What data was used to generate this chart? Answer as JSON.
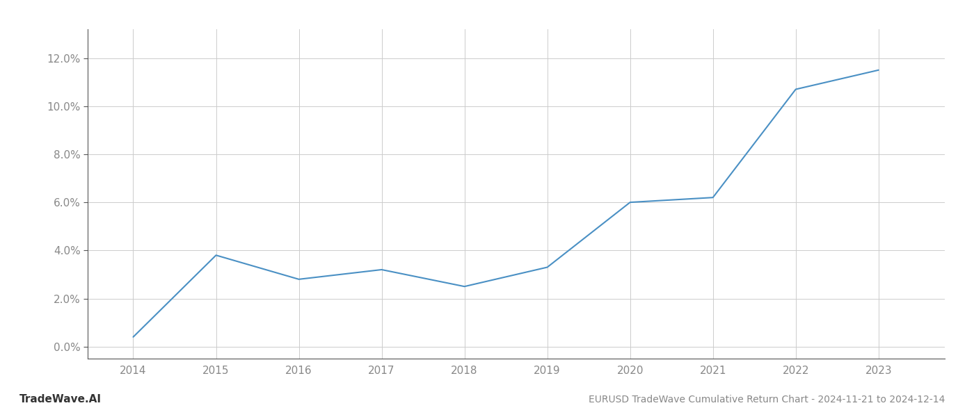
{
  "x_years": [
    2014,
    2015,
    2016,
    2017,
    2018,
    2019,
    2020,
    2021,
    2022,
    2023
  ],
  "y_values": [
    0.004,
    0.038,
    0.028,
    0.032,
    0.025,
    0.033,
    0.06,
    0.062,
    0.107,
    0.115
  ],
  "line_color": "#4a90c4",
  "background_color": "#ffffff",
  "grid_color": "#cccccc",
  "axis_color": "#555555",
  "tick_color": "#888888",
  "title": "EURUSD TradeWave Cumulative Return Chart - 2024-11-21 to 2024-12-14",
  "watermark": "TradeWave.AI",
  "ylim_min": -0.005,
  "ylim_max": 0.132,
  "ytick_values": [
    0.0,
    0.02,
    0.04,
    0.06,
    0.08,
    0.1,
    0.12
  ],
  "ytick_labels": [
    "0.0%",
    "2.0%",
    "4.0%",
    "6.0%",
    "8.0%",
    "10.0%",
    "12.0%"
  ],
  "xlim_min": 2013.45,
  "xlim_max": 2023.8,
  "figsize": [
    14.0,
    6.0
  ],
  "dpi": 100
}
